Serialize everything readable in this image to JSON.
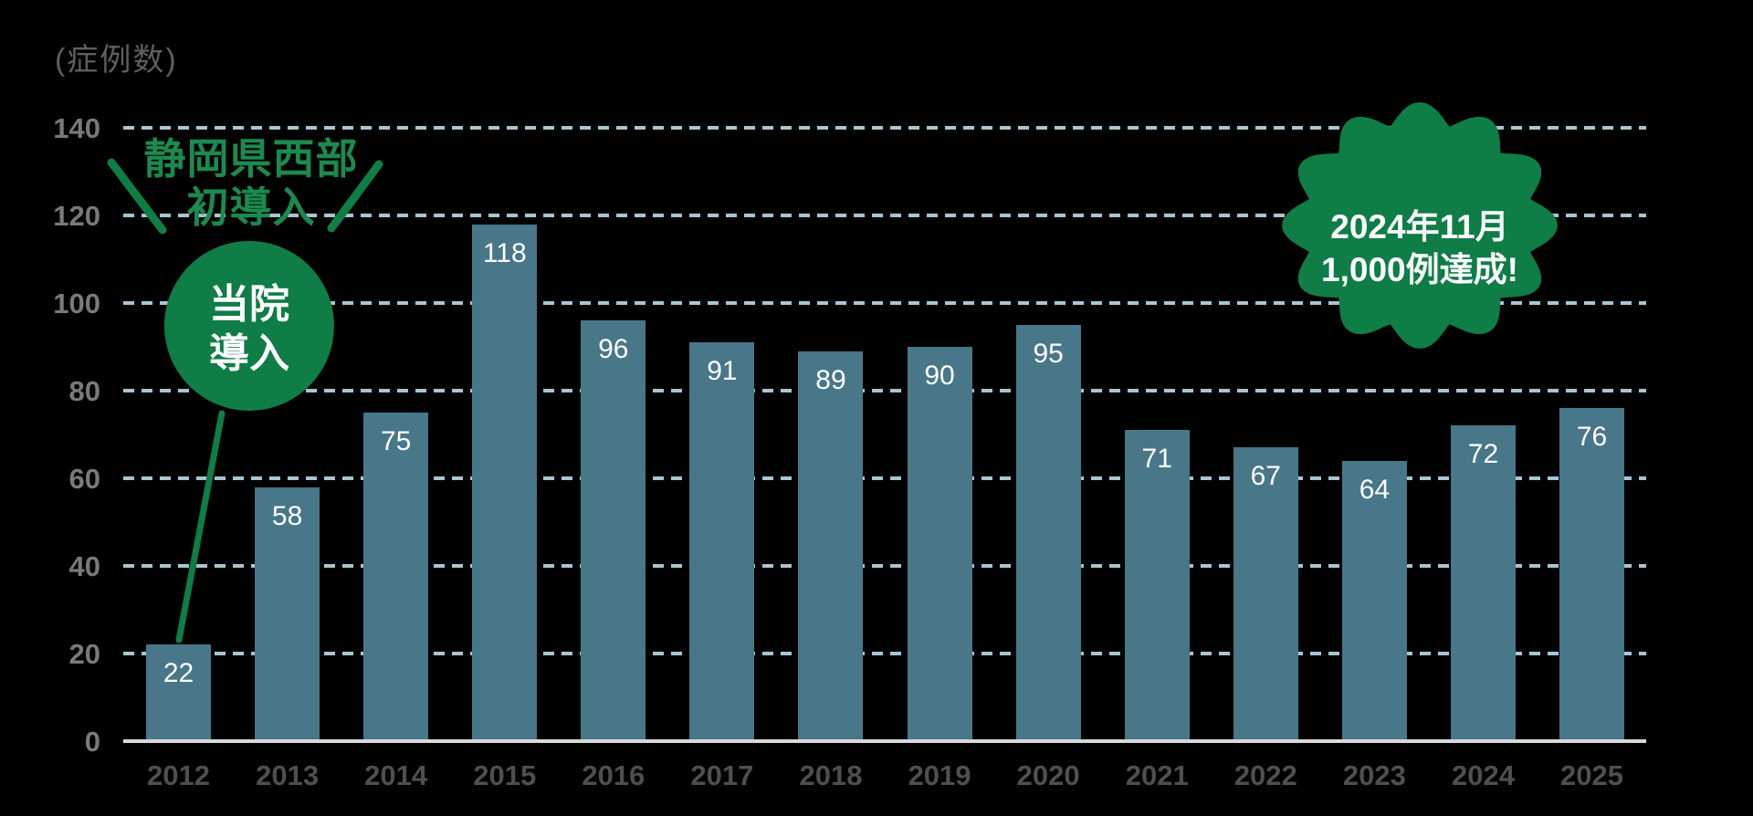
{
  "unit_label": "(症例数)",
  "chart_data": {
    "type": "bar",
    "title": "",
    "unit_label": "(症例数)",
    "xlabel": "",
    "ylabel": "症例数",
    "categories": [
      "2012",
      "2013",
      "2014",
      "2015",
      "2016",
      "2017",
      "2018",
      "2019",
      "2020",
      "2021",
      "2022",
      "2023",
      "2024",
      "2025"
    ],
    "values": [
      22,
      58,
      75,
      118,
      96,
      91,
      89,
      90,
      95,
      71,
      67,
      64,
      72,
      76
    ],
    "ylim": [
      0,
      140
    ],
    "yticks": [
      0,
      20,
      40,
      60,
      80,
      100,
      120,
      140
    ],
    "grid": "horizontal-dashed",
    "legend": "none",
    "value_labels": "inside-top-white"
  },
  "annotations": {
    "region_first": {
      "line1": "静岡県西部",
      "line2": "初導入"
    },
    "hospital_adoption": {
      "line1": "当院",
      "line2": "導入"
    },
    "milestone": {
      "line1": "2024年11月",
      "line2": "1,000例達成!"
    }
  },
  "colors": {
    "background": "#000000",
    "bar": "#477789",
    "bar_value_text": "#ffffff",
    "gridline": "#a9c5d1",
    "axis_line": "#d9d9d9",
    "ytick_text": "#7a7a7a",
    "xtick_text": "#4f4f4f",
    "unit_text": "#5f5f5f",
    "accent_green": "#0e7d46",
    "accent_green_text": "#1b8a4e",
    "badge_text": "#ffffff"
  }
}
